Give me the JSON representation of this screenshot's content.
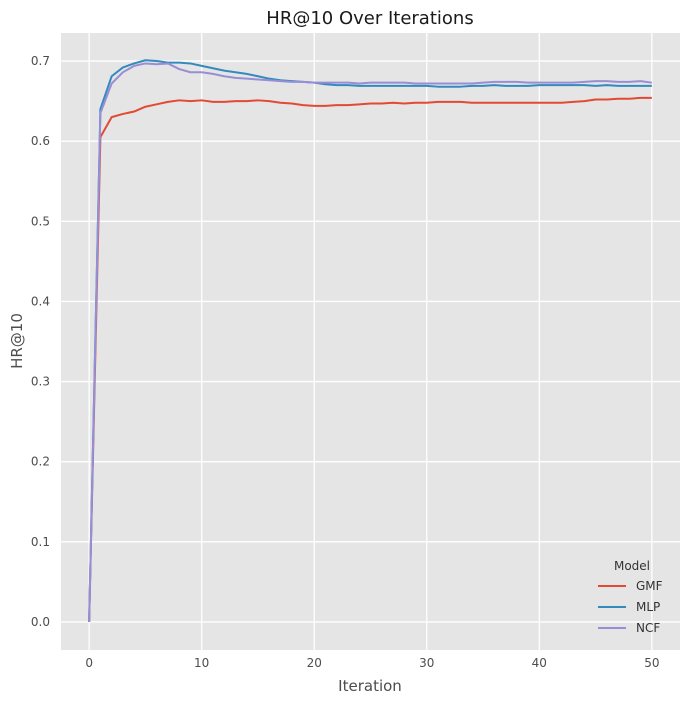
{
  "chart_data": {
    "type": "line",
    "title": "HR@10 Over Iterations",
    "xlabel": "Iteration",
    "ylabel": "HR@10",
    "xlim": [
      -2.5,
      52.5
    ],
    "ylim": [
      -0.035,
      0.735
    ],
    "xticks": [
      0,
      10,
      20,
      30,
      40,
      50
    ],
    "yticks": [
      0.0,
      0.1,
      0.2,
      0.3,
      0.4,
      0.5,
      0.6,
      0.7
    ],
    "ytick_labels": [
      "0.0",
      "0.1",
      "0.2",
      "0.3",
      "0.4",
      "0.5",
      "0.6",
      "0.7"
    ],
    "grid": true,
    "legend": {
      "title": "Model",
      "placement": "lower-right"
    },
    "x": [
      0,
      1,
      2,
      3,
      4,
      5,
      6,
      7,
      8,
      9,
      10,
      11,
      12,
      13,
      14,
      15,
      16,
      17,
      18,
      19,
      20,
      21,
      22,
      23,
      24,
      25,
      26,
      27,
      28,
      29,
      30,
      31,
      32,
      33,
      34,
      35,
      36,
      37,
      38,
      39,
      40,
      41,
      42,
      43,
      44,
      45,
      46,
      47,
      48,
      49,
      50
    ],
    "series": [
      {
        "name": "GMF",
        "color": "#e24a33",
        "values": [
          0.0,
          0.605,
          0.63,
          0.634,
          0.637,
          0.643,
          0.646,
          0.649,
          0.651,
          0.65,
          0.651,
          0.649,
          0.649,
          0.65,
          0.65,
          0.651,
          0.65,
          0.648,
          0.647,
          0.645,
          0.644,
          0.644,
          0.645,
          0.645,
          0.646,
          0.647,
          0.647,
          0.648,
          0.647,
          0.648,
          0.648,
          0.649,
          0.649,
          0.649,
          0.648,
          0.648,
          0.648,
          0.648,
          0.648,
          0.648,
          0.648,
          0.648,
          0.648,
          0.649,
          0.65,
          0.652,
          0.652,
          0.653,
          0.653,
          0.654,
          0.654
        ]
      },
      {
        "name": "MLP",
        "color": "#348abd",
        "values": [
          0.0,
          0.64,
          0.681,
          0.692,
          0.697,
          0.701,
          0.7,
          0.698,
          0.698,
          0.697,
          0.694,
          0.691,
          0.688,
          0.686,
          0.684,
          0.681,
          0.678,
          0.676,
          0.675,
          0.674,
          0.673,
          0.671,
          0.67,
          0.67,
          0.669,
          0.669,
          0.669,
          0.669,
          0.669,
          0.669,
          0.669,
          0.668,
          0.668,
          0.668,
          0.669,
          0.669,
          0.67,
          0.669,
          0.669,
          0.669,
          0.67,
          0.67,
          0.67,
          0.67,
          0.67,
          0.669,
          0.67,
          0.669,
          0.669,
          0.669,
          0.669
        ]
      },
      {
        "name": "NCF",
        "color": "#988ed5",
        "values": [
          0.0,
          0.635,
          0.672,
          0.686,
          0.694,
          0.697,
          0.696,
          0.697,
          0.69,
          0.686,
          0.686,
          0.684,
          0.681,
          0.679,
          0.678,
          0.677,
          0.676,
          0.675,
          0.674,
          0.674,
          0.673,
          0.673,
          0.673,
          0.673,
          0.672,
          0.673,
          0.673,
          0.673,
          0.673,
          0.672,
          0.672,
          0.672,
          0.672,
          0.672,
          0.672,
          0.673,
          0.674,
          0.674,
          0.674,
          0.673,
          0.673,
          0.673,
          0.673,
          0.673,
          0.674,
          0.675,
          0.675,
          0.674,
          0.674,
          0.675,
          0.673
        ]
      }
    ]
  }
}
